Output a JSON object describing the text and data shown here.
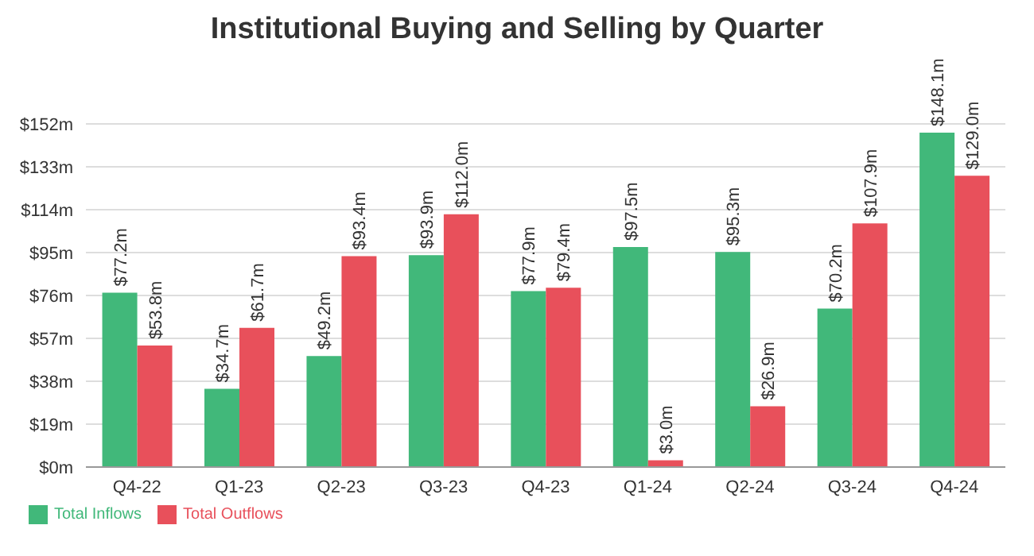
{
  "chart_data": {
    "type": "bar",
    "title": "Institutional Buying and Selling by Quarter",
    "categories": [
      "Q4-22",
      "Q1-23",
      "Q2-23",
      "Q3-23",
      "Q4-23",
      "Q1-24",
      "Q2-24",
      "Q3-24",
      "Q4-24"
    ],
    "series": [
      {
        "name": "Total Inflows",
        "color": "#41b87a",
        "values": [
          77.2,
          34.7,
          49.2,
          93.9,
          77.9,
          97.5,
          95.3,
          70.2,
          148.1
        ],
        "value_labels": [
          "$77.2m",
          "$34.7m",
          "$49.2m",
          "$93.9m",
          "$77.9m",
          "$97.5m",
          "$95.3m",
          "$70.2m",
          "$148.1m"
        ]
      },
      {
        "name": "Total Outflows",
        "color": "#e8505b",
        "values": [
          53.8,
          61.7,
          93.4,
          112.0,
          79.4,
          3.0,
          26.9,
          107.9,
          129.0
        ],
        "value_labels": [
          "$53.8m",
          "$61.7m",
          "$93.4m",
          "$112.0m",
          "$79.4m",
          "$3.0m",
          "$26.9m",
          "$107.9m",
          "$129.0m"
        ]
      }
    ],
    "ylim": [
      0,
      152
    ],
    "yticks": [
      {
        "value": 0,
        "label": "$0m"
      },
      {
        "value": 19,
        "label": "$19m"
      },
      {
        "value": 38,
        "label": "$38m"
      },
      {
        "value": 57,
        "label": "$57m"
      },
      {
        "value": 76,
        "label": "$76m"
      },
      {
        "value": 95,
        "label": "$95m"
      },
      {
        "value": 114,
        "label": "$114m"
      },
      {
        "value": 133,
        "label": "$133m"
      },
      {
        "value": 152,
        "label": "$152m"
      }
    ],
    "grid": "y",
    "legend": "bottom left"
  }
}
